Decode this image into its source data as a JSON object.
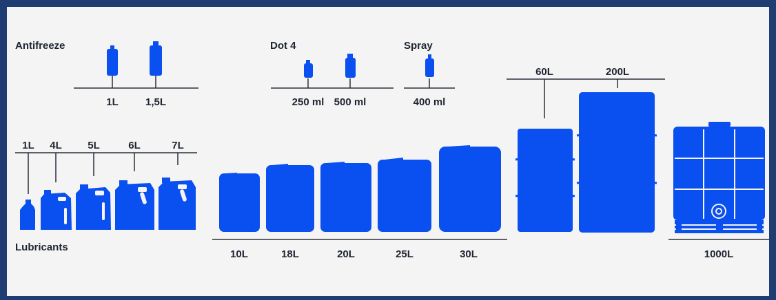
{
  "colors": {
    "frame": "#1f3d72",
    "background": "#f4f4f4",
    "container": "#0a4ff0",
    "text": "#1f2430",
    "line": "#2b2f3a"
  },
  "groups": {
    "antifreeze": {
      "title": "Antifreeze",
      "sizes": [
        "1L",
        "1,5L"
      ]
    },
    "dot4": {
      "title": "Dot 4",
      "sizes": [
        "250 ml",
        "500 ml"
      ]
    },
    "spray": {
      "title": "Spray",
      "sizes": [
        "400 ml"
      ]
    },
    "lubricants": {
      "title": "Lubricants",
      "sizes": [
        "1L",
        "4L",
        "5L",
        "6L",
        "7L"
      ]
    },
    "canisters": {
      "sizes": [
        "10L",
        "18L",
        "20L",
        "25L",
        "30L"
      ]
    },
    "drums": {
      "sizes": [
        "60L",
        "200L"
      ]
    },
    "ibc": {
      "sizes": [
        "1000L"
      ]
    }
  },
  "icons": [
    "bottle-icon",
    "jerrycan-icon",
    "canister-icon",
    "drum-icon",
    "ibc-tank-icon"
  ]
}
